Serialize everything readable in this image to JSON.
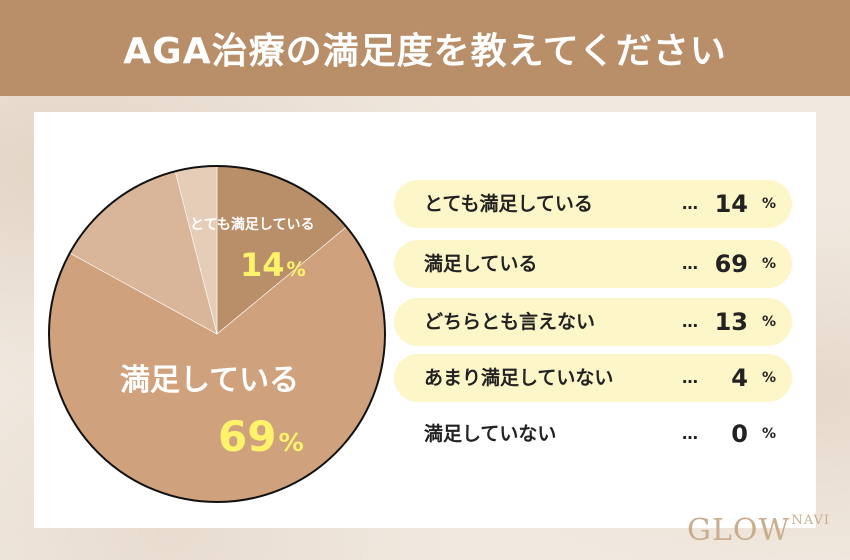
{
  "header": {
    "title": "AGA治療の満足度を教えてください"
  },
  "chart_data": {
    "type": "pie",
    "title": "AGA治療の満足度を教えてください",
    "unit": "%",
    "series": [
      {
        "name": "とても満足している",
        "value": 14,
        "color": "#b98f6a"
      },
      {
        "name": "満足している",
        "value": 69,
        "color": "#cfa17c"
      },
      {
        "name": "どちらとも言えない",
        "value": 13,
        "color": "#d9b69a"
      },
      {
        "name": "あまり満足していない",
        "value": 4,
        "color": "#e5cdb8"
      },
      {
        "name": "満足していない",
        "value": 0,
        "color": "#efe0d2"
      }
    ],
    "slice_labels": [
      {
        "name": "とても満足している",
        "value": "14",
        "unit": "%"
      },
      {
        "name": "満足している",
        "value": "69",
        "unit": "%"
      }
    ]
  },
  "legend": {
    "dots": "…",
    "unit": "%",
    "rows": [
      {
        "name": "とても満足している",
        "value": "14"
      },
      {
        "name": "満足している",
        "value": "69"
      },
      {
        "name": "どちらとも言えない",
        "value": "13"
      },
      {
        "name": "あまり満足していない",
        "value": "4"
      },
      {
        "name": "満足していない",
        "value": "0"
      }
    ]
  },
  "logo": {
    "main": "GLOW",
    "sub": "NAVI"
  },
  "colors": {
    "header": "#b98f6a",
    "highlight": "#fff36b",
    "row_fill": "#fdf6c8"
  }
}
